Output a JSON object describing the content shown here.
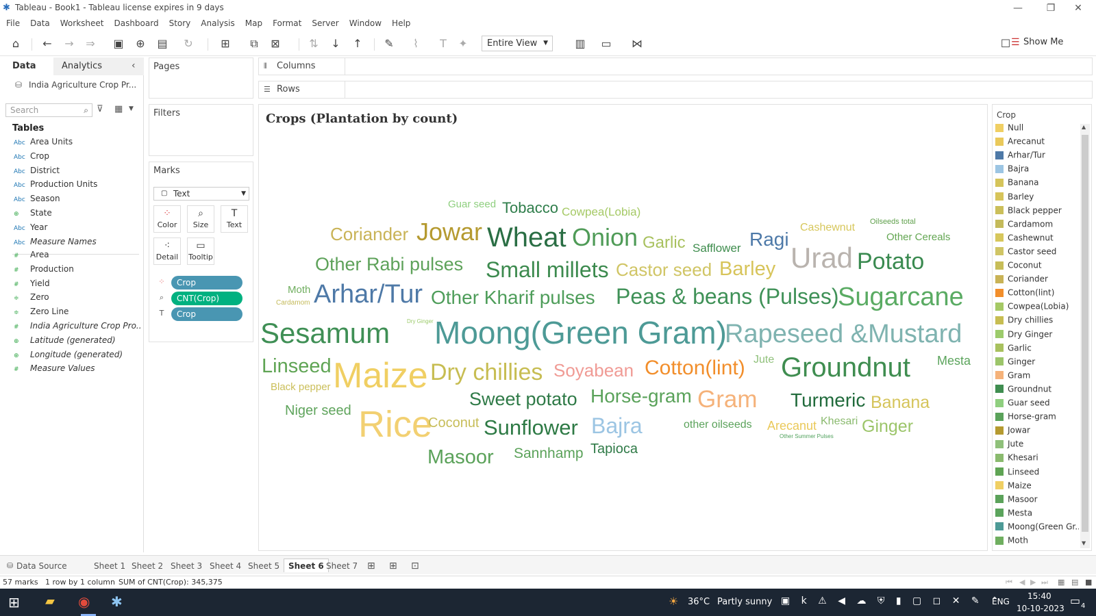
{
  "window": {
    "title": "Tableau - Book1 - Tableau license expires in 9 days",
    "controls": [
      "—",
      "❐",
      "✕"
    ]
  },
  "menu": [
    "File",
    "Data",
    "Worksheet",
    "Dashboard",
    "Story",
    "Analysis",
    "Map",
    "Format",
    "Server",
    "Window",
    "Help"
  ],
  "toolbar": {
    "view_select": "Entire View",
    "show_me": "Show Me"
  },
  "left_pane": {
    "tabs": [
      "Data",
      "Analytics"
    ],
    "data_source": "India Agriculture Crop Pr...",
    "search_placeholder": "Search",
    "tables_header": "Tables",
    "dimensions": [
      {
        "type": "Abc",
        "name": "Area Units"
      },
      {
        "type": "Abc",
        "name": "Crop"
      },
      {
        "type": "Abc",
        "name": "District"
      },
      {
        "type": "Abc",
        "name": "Production Units"
      },
      {
        "type": "Abc",
        "name": "Season"
      },
      {
        "type": "geo",
        "name": "State"
      },
      {
        "type": "Abc",
        "name": "Year"
      },
      {
        "type": "Abc",
        "name": "Measure Names"
      }
    ],
    "measures": [
      {
        "type": "#",
        "name": "Area"
      },
      {
        "type": "#",
        "name": "Production"
      },
      {
        "type": "#",
        "name": "Yield"
      },
      {
        "type": "#c",
        "name": "Zero"
      },
      {
        "type": "#c",
        "name": "Zero Line"
      },
      {
        "type": "#",
        "name": "India Agriculture Crop Pro..."
      },
      {
        "type": "geo",
        "name": "Latitude (generated)"
      },
      {
        "type": "geo",
        "name": "Longitude (generated)"
      },
      {
        "type": "#",
        "name": "Measure Values"
      }
    ]
  },
  "shelves": {
    "pages": "Pages",
    "filters": "Filters",
    "marks": "Marks",
    "mark_type": "Text",
    "mark_buttons": [
      "Color",
      "Size",
      "Text",
      "Detail",
      "Tooltip"
    ],
    "pills": [
      {
        "label": "Crop",
        "color": "#4996b2"
      },
      {
        "label": "CNT(Crop)",
        "color": "#00b180"
      },
      {
        "label": "Crop",
        "color": "#4996b2"
      }
    ],
    "columns": "Columns",
    "rows": "Rows"
  },
  "viz": {
    "title": "Crops (Plantation by count)",
    "words": [
      {
        "t": "Guar seed",
        "c": "#8fcf7f"
      },
      {
        "t": "Tobacco",
        "c": "#2e7d4a"
      },
      {
        "t": "Cowpea(Lobia)",
        "c": "#a5c965"
      },
      {
        "t": "Coriander",
        "c": "#c9b356"
      },
      {
        "t": "Jowar",
        "c": "#b59a30"
      },
      {
        "t": "Wheat",
        "c": "#2a6e44"
      },
      {
        "t": "Onion",
        "c": "#4f9b57"
      },
      {
        "t": "Garlic",
        "c": "#a8c15e"
      },
      {
        "t": "Safflower",
        "c": "#3f8d4e"
      },
      {
        "t": "Ragi",
        "c": "#4d79a8"
      },
      {
        "t": "Cashewnut",
        "c": "#d7c75c"
      },
      {
        "t": "Oilseeds total",
        "c": "#5fa04b"
      },
      {
        "t": "Other Cereals",
        "c": "#63a652"
      },
      {
        "t": "Urad",
        "c": "#b9b3ae"
      },
      {
        "t": "Potato",
        "c": "#3a8a50"
      },
      {
        "t": "Other Rabi pulses",
        "c": "#5ea25a"
      },
      {
        "t": "Small millets",
        "c": "#3c8a4e"
      },
      {
        "t": "Castor seed",
        "c": "#d0c565"
      },
      {
        "t": "Barley",
        "c": "#d7c45a"
      },
      {
        "t": "Moth",
        "c": "#6fae5f"
      },
      {
        "t": "Cardamom",
        "c": "#c4ba5a"
      },
      {
        "t": "Arhar/Tur",
        "c": "#4e79a7"
      },
      {
        "t": "Other Kharif pulses",
        "c": "#4e9d5a"
      },
      {
        "t": "Peas & beans (Pulses)",
        "c": "#3f9157"
      },
      {
        "t": "Sugarcane",
        "c": "#5aab63"
      },
      {
        "t": "Dry Ginger",
        "c": "#9ccb6b"
      },
      {
        "t": "Sesamum",
        "c": "#3f8f55"
      },
      {
        "t": "Moong(Green Gram)",
        "c": "#4d9a96"
      },
      {
        "t": "Rapeseed &Mustard",
        "c": "#7fb3b0"
      },
      {
        "t": "Linseed",
        "c": "#5fa454"
      },
      {
        "t": "Maize",
        "c": "#f0cf63"
      },
      {
        "t": "Dry chillies",
        "c": "#c7bd52"
      },
      {
        "t": "Soyabean",
        "c": "#f09b95"
      },
      {
        "t": "Cotton(lint)",
        "c": "#f28e2b"
      },
      {
        "t": "Jute",
        "c": "#8fc07a"
      },
      {
        "t": "Groundnut",
        "c": "#3f8d50"
      },
      {
        "t": "Mesta",
        "c": "#5ba45c"
      },
      {
        "t": "Black pepper",
        "c": "#cbbf5a"
      },
      {
        "t": "Sweet potato",
        "c": "#2f7a47"
      },
      {
        "t": "Horse-gram",
        "c": "#5aa25a"
      },
      {
        "t": "Gram",
        "c": "#f5b27a"
      },
      {
        "t": "Turmeric",
        "c": "#216b3c"
      },
      {
        "t": "Banana",
        "c": "#d5c45a"
      },
      {
        "t": "Niger seed",
        "c": "#5fa45c"
      },
      {
        "t": "Rice",
        "c": "#f2d072"
      },
      {
        "t": "Coconut",
        "c": "#c7bd58"
      },
      {
        "t": "Sunflower",
        "c": "#2e7a45"
      },
      {
        "t": "Bajra",
        "c": "#9cc5e3"
      },
      {
        "t": "other oilseeds",
        "c": "#5aa25a"
      },
      {
        "t": "Arecanut",
        "c": "#eac95a"
      },
      {
        "t": "Khesari",
        "c": "#8aba6e"
      },
      {
        "t": "Ginger",
        "c": "#9cc56a"
      },
      {
        "t": "Other Summer Pulses",
        "c": "#4fa15c"
      },
      {
        "t": "Masoor",
        "c": "#5ba25a"
      },
      {
        "t": "Sannhamp",
        "c": "#5ba25a"
      },
      {
        "t": "Tapioca",
        "c": "#2f7a47"
      }
    ]
  },
  "legend": {
    "title": "Crop",
    "items": [
      {
        "label": "Null",
        "color": "#f0cf63"
      },
      {
        "label": "Arecanut",
        "color": "#eac95a"
      },
      {
        "label": "Arhar/Tur",
        "color": "#4e79a7"
      },
      {
        "label": "Bajra",
        "color": "#9cc5e3"
      },
      {
        "label": "Banana",
        "color": "#d5c45a"
      },
      {
        "label": "Barley",
        "color": "#d7c45a"
      },
      {
        "label": "Black pepper",
        "color": "#cbbf5a"
      },
      {
        "label": "Cardamom",
        "color": "#c4ba5a"
      },
      {
        "label": "Cashewnut",
        "color": "#d7c75c"
      },
      {
        "label": "Castor seed",
        "color": "#d0c565"
      },
      {
        "label": "Coconut",
        "color": "#c7bd58"
      },
      {
        "label": "Coriander",
        "color": "#c9b356"
      },
      {
        "label": "Cotton(lint)",
        "color": "#f28e2b"
      },
      {
        "label": "Cowpea(Lobia)",
        "color": "#a5c965"
      },
      {
        "label": "Dry chillies",
        "color": "#c7bd52"
      },
      {
        "label": "Dry Ginger",
        "color": "#9ccb6b"
      },
      {
        "label": "Garlic",
        "color": "#a8c15e"
      },
      {
        "label": "Ginger",
        "color": "#9cc56a"
      },
      {
        "label": "Gram",
        "color": "#f5b27a"
      },
      {
        "label": "Groundnut",
        "color": "#3f8d50"
      },
      {
        "label": "Guar seed",
        "color": "#8fcf7f"
      },
      {
        "label": "Horse-gram",
        "color": "#5aa25a"
      },
      {
        "label": "Jowar",
        "color": "#b59a30"
      },
      {
        "label": "Jute",
        "color": "#8fc07a"
      },
      {
        "label": "Khesari",
        "color": "#8aba6e"
      },
      {
        "label": "Linseed",
        "color": "#5fa454"
      },
      {
        "label": "Maize",
        "color": "#f0cf63"
      },
      {
        "label": "Masoor",
        "color": "#5ba25a"
      },
      {
        "label": "Mesta",
        "color": "#5ba45c"
      },
      {
        "label": "Moong(Green Gr...",
        "color": "#4d9a96"
      },
      {
        "label": "Moth",
        "color": "#6fae5f"
      }
    ]
  },
  "sheet_tabs": {
    "data_source": "Data Source",
    "sheets": [
      "Sheet 1",
      "Sheet 2",
      "Sheet 3",
      "Sheet 4",
      "Sheet 5",
      "Sheet 6",
      "Sheet 7"
    ],
    "active": "Sheet 6"
  },
  "status": {
    "marks": "57 marks",
    "rows_cols": "1 row by 1 column",
    "sum": "SUM of CNT(Crop): 345,375"
  },
  "taskbar": {
    "weather_temp": "36°C",
    "weather_desc": "Partly sunny",
    "lang": "ENG",
    "time": "15:40",
    "date": "10-10-2023",
    "notif_count": "4"
  }
}
